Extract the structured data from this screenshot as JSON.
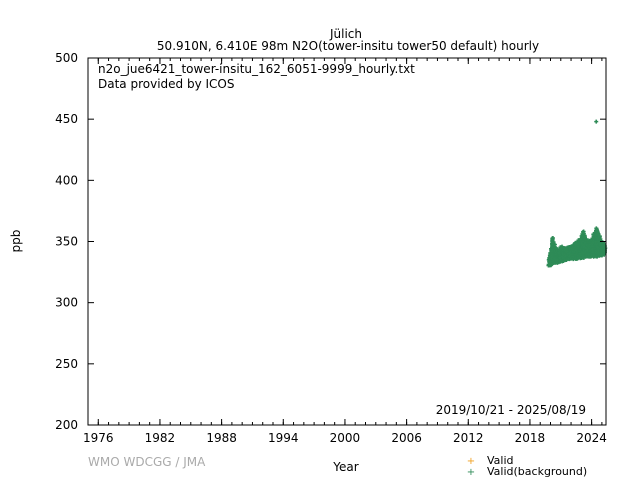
{
  "chart_data": {
    "type": "scatter",
    "title_line1": "Jülich",
    "title_line2": "50.910N, 6.410E 98m    N2O(tower-insitu tower50 default) hourly",
    "annotation_file": "n2o_jue6421_tower-insitu_162_6051-9999_hourly.txt",
    "annotation_provider": "Data provided by ICOS",
    "date_range": "2019/10/21 - 2025/08/19",
    "xlabel": "Year",
    "ylabel": "ppb",
    "xlim": [
      1975.0,
      2025.4
    ],
    "ylim": [
      200,
      500
    ],
    "xticks": [
      "1976",
      "1982",
      "1988",
      "1994",
      "2000",
      "2006",
      "2012",
      "2018",
      "2024"
    ],
    "yticks": [
      "200",
      "250",
      "300",
      "350",
      "400",
      "450",
      "500"
    ],
    "credit": "WMO WDCGG / JMA",
    "legend": [
      {
        "label": "Valid",
        "color": "#f0a020"
      },
      {
        "label": "Valid(background)",
        "color": "#2e8b57"
      }
    ],
    "series_band": [
      {
        "x": 2019.85,
        "min": 330,
        "max": 338
      },
      {
        "x": 2020.0,
        "min": 331,
        "max": 341
      },
      {
        "x": 2020.2,
        "min": 332,
        "max": 353
      },
      {
        "x": 2020.5,
        "min": 333,
        "max": 345
      },
      {
        "x": 2020.8,
        "min": 333,
        "max": 343
      },
      {
        "x": 2021.0,
        "min": 334,
        "max": 346
      },
      {
        "x": 2021.5,
        "min": 335,
        "max": 345
      },
      {
        "x": 2022.0,
        "min": 336,
        "max": 346
      },
      {
        "x": 2022.5,
        "min": 336,
        "max": 350
      },
      {
        "x": 2023.0,
        "min": 337,
        "max": 353
      },
      {
        "x": 2023.2,
        "min": 337,
        "max": 358
      },
      {
        "x": 2023.5,
        "min": 338,
        "max": 352
      },
      {
        "x": 2024.0,
        "min": 338,
        "max": 352
      },
      {
        "x": 2024.5,
        "min": 338,
        "max": 362
      },
      {
        "x": 2025.0,
        "min": 339,
        "max": 350
      },
      {
        "x": 2025.3,
        "min": 340,
        "max": 347
      }
    ],
    "outliers": [
      [
        2024.45,
        448
      ]
    ]
  }
}
